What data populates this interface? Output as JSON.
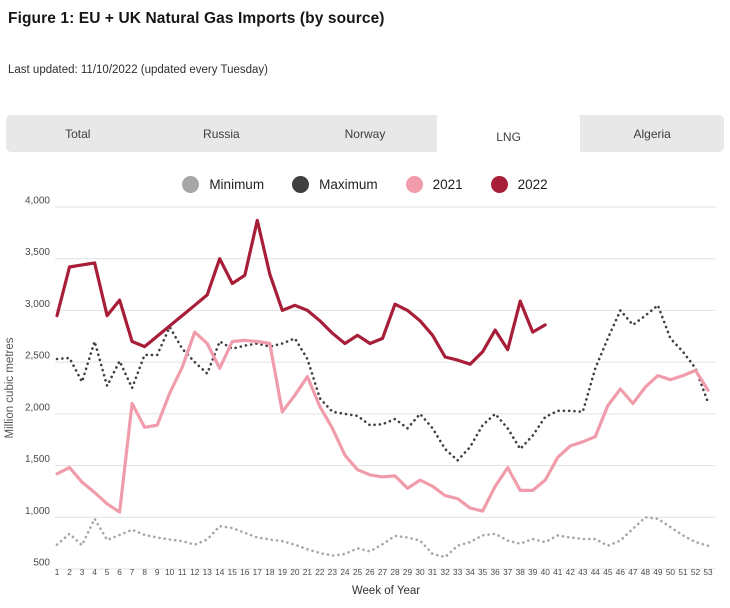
{
  "header": {
    "title": "Figure 1: EU + UK Natural Gas Imports (by source)",
    "subtitle": "Last updated: 11/10/2022 (updated every Tuesday)"
  },
  "tabs": {
    "items": [
      {
        "label": "Total",
        "active": false
      },
      {
        "label": "Russia",
        "active": false
      },
      {
        "label": "Norway",
        "active": false
      },
      {
        "label": "LNG",
        "active": true
      },
      {
        "label": "Algeria",
        "active": false
      }
    ]
  },
  "legend": {
    "items": [
      {
        "label": "Minimum",
        "color": "#a6a6a6"
      },
      {
        "label": "Maximum",
        "color": "#3f3f3f"
      },
      {
        "label": "2021",
        "color": "#f09cab"
      },
      {
        "label": "2022",
        "color": "#a81d37"
      }
    ]
  },
  "colors": {
    "tabbar_bg": "#e9e8e8",
    "active_tab_bg": "#ffffff",
    "gridline": "#e2e2e2",
    "axis_text": "#4a4a4a"
  },
  "chart_data": {
    "type": "line",
    "title": "",
    "xlabel": "Week of Year",
    "ylabel": "Million cubic metres",
    "x": [
      1,
      2,
      3,
      4,
      5,
      6,
      7,
      8,
      9,
      10,
      11,
      12,
      13,
      14,
      15,
      16,
      17,
      18,
      19,
      20,
      21,
      22,
      23,
      24,
      25,
      26,
      27,
      28,
      29,
      30,
      31,
      32,
      33,
      34,
      35,
      36,
      37,
      38,
      39,
      40,
      41,
      42,
      43,
      44,
      45,
      46,
      47,
      48,
      49,
      50,
      51,
      52,
      53
    ],
    "ylim": [
      500,
      4000
    ],
    "yticks": [
      500,
      1000,
      1500,
      2000,
      2500,
      3000,
      3500,
      4000
    ],
    "ytick_labels": [
      "500",
      "1,000",
      "1,500",
      "2,000",
      "2,500",
      "3,000",
      "3,500",
      "4,000"
    ],
    "grid": "horizontal",
    "legend_position": "top",
    "series": [
      {
        "name": "Minimum",
        "color": "#a6a6a6",
        "dotted": true,
        "values": [
          735,
          840,
          730,
          985,
          780,
          830,
          880,
          830,
          805,
          785,
          770,
          735,
          785,
          915,
          895,
          850,
          805,
          785,
          770,
          735,
          690,
          655,
          630,
          645,
          700,
          670,
          740,
          820,
          805,
          775,
          645,
          615,
          725,
          760,
          825,
          840,
          775,
          745,
          790,
          760,
          825,
          805,
          790,
          790,
          725,
          775,
          890,
          1000,
          985,
          905,
          825,
          760,
          725
        ]
      },
      {
        "name": "Maximum",
        "color": "#3f3f3f",
        "dotted": true,
        "values": [
          2530,
          2540,
          2310,
          2700,
          2270,
          2510,
          2250,
          2570,
          2570,
          2840,
          2630,
          2500,
          2390,
          2700,
          2630,
          2660,
          2680,
          2650,
          2680,
          2730,
          2530,
          2150,
          2020,
          2000,
          1980,
          1890,
          1900,
          1950,
          1860,
          2000,
          1860,
          1660,
          1550,
          1680,
          1890,
          2000,
          1860,
          1660,
          1790,
          1970,
          2030,
          2030,
          2020,
          2440,
          2730,
          3000,
          2860,
          2950,
          3050,
          2730,
          2600,
          2440,
          2110
        ]
      },
      {
        "name": "2021",
        "color": "#f09cab",
        "dotted": false,
        "values": [
          1420,
          1480,
          1340,
          1240,
          1130,
          1050,
          2100,
          1870,
          1890,
          2200,
          2450,
          2790,
          2680,
          2440,
          2700,
          2710,
          2700,
          2680,
          2020,
          2180,
          2360,
          2070,
          1860,
          1600,
          1460,
          1410,
          1390,
          1400,
          1280,
          1360,
          1300,
          1210,
          1180,
          1090,
          1060,
          1300,
          1480,
          1260,
          1260,
          1360,
          1580,
          1690,
          1730,
          1780,
          2080,
          2240,
          2100,
          2260,
          2370,
          2330,
          2370,
          2420,
          2230
        ]
      },
      {
        "name": "2022",
        "color": "#a81d37",
        "dotted": false,
        "values": [
          2950,
          3420,
          3440,
          3460,
          2950,
          3100,
          2700,
          2650,
          2750,
          2850,
          2950,
          3050,
          3150,
          3500,
          3260,
          3340,
          3870,
          3350,
          3000,
          3050,
          3000,
          2900,
          2780,
          2680,
          2760,
          2680,
          2730,
          3060,
          3000,
          2900,
          2760,
          2550,
          2520,
          2480,
          2600,
          2810,
          2620,
          3090,
          2790,
          2860
        ]
      }
    ]
  }
}
